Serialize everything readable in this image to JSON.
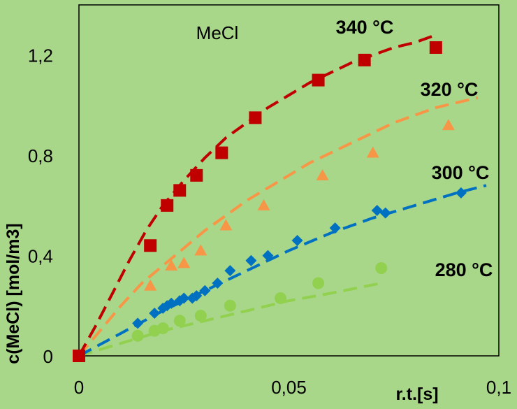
{
  "colors": {
    "background": "#a9d78a",
    "series_340": "#c00000",
    "series_320": "#f79646",
    "series_300": "#0070c0",
    "series_280": "#92d050"
  },
  "chart_data": {
    "type": "scatter",
    "title": "MeCl",
    "xlabel": "r.t.[s]",
    "ylabel": "c(MeCl)  [mol/m3]",
    "xlim": [
      0,
      0.1
    ],
    "ylim": [
      0,
      1.4
    ],
    "x_ticks": [
      "0",
      "0,05",
      "0,1"
    ],
    "x_tick_values": [
      0,
      0.05,
      0.1
    ],
    "y_ticks": [
      "0",
      "0,4",
      "0,8",
      "1,2"
    ],
    "y_tick_values": [
      0,
      0.4,
      0.8,
      1.2
    ],
    "grid": false,
    "legend": "none",
    "series": [
      {
        "name": "340 °C",
        "marker": "square",
        "color": "#c00000",
        "x": [
          0.0,
          0.017,
          0.021,
          0.024,
          0.028,
          0.034,
          0.042,
          0.057,
          0.068,
          0.085
        ],
        "y": [
          0.0,
          0.44,
          0.6,
          0.66,
          0.72,
          0.81,
          0.95,
          1.1,
          1.18,
          1.23
        ],
        "fit_x": [
          0.0,
          0.004,
          0.008,
          0.012,
          0.016,
          0.02,
          0.025,
          0.03,
          0.035,
          0.04,
          0.045,
          0.05,
          0.055,
          0.06,
          0.065,
          0.07,
          0.075,
          0.08,
          0.085
        ],
        "fit_y": [
          0.0,
          0.12,
          0.25,
          0.38,
          0.5,
          0.6,
          0.7,
          0.79,
          0.87,
          0.93,
          0.99,
          1.04,
          1.09,
          1.13,
          1.17,
          1.2,
          1.23,
          1.25,
          1.28
        ]
      },
      {
        "name": "320 °C",
        "marker": "triangle",
        "color": "#f79646",
        "x": [
          0.0,
          0.017,
          0.022,
          0.025,
          0.029,
          0.035,
          0.044,
          0.058,
          0.07,
          0.088
        ],
        "y": [
          0.0,
          0.28,
          0.36,
          0.37,
          0.42,
          0.52,
          0.6,
          0.72,
          0.81,
          0.92
        ],
        "fit_x": [
          0.0,
          0.005,
          0.01,
          0.015,
          0.02,
          0.025,
          0.03,
          0.035,
          0.04,
          0.045,
          0.05,
          0.055,
          0.06,
          0.065,
          0.07,
          0.075,
          0.08,
          0.085,
          0.09,
          0.095
        ],
        "fit_y": [
          0.0,
          0.1,
          0.2,
          0.29,
          0.36,
          0.43,
          0.5,
          0.56,
          0.62,
          0.67,
          0.72,
          0.77,
          0.81,
          0.85,
          0.89,
          0.93,
          0.96,
          0.99,
          1.01,
          1.03
        ]
      },
      {
        "name": "300 °C",
        "marker": "diamond",
        "color": "#0070c0",
        "x": [
          0.0,
          0.014,
          0.018,
          0.02,
          0.021,
          0.022,
          0.024,
          0.025,
          0.027,
          0.028,
          0.03,
          0.033,
          0.036,
          0.041,
          0.045,
          0.052,
          0.061,
          0.071,
          0.073,
          0.091
        ],
        "y": [
          0.0,
          0.13,
          0.17,
          0.19,
          0.2,
          0.21,
          0.22,
          0.23,
          0.23,
          0.24,
          0.26,
          0.29,
          0.34,
          0.38,
          0.4,
          0.46,
          0.51,
          0.58,
          0.57,
          0.65
        ],
        "fit_x": [
          0.0,
          0.01,
          0.02,
          0.03,
          0.04,
          0.05,
          0.06,
          0.07,
          0.08,
          0.09,
          0.097
        ],
        "fit_y": [
          0.0,
          0.09,
          0.18,
          0.26,
          0.34,
          0.42,
          0.49,
          0.55,
          0.6,
          0.65,
          0.68
        ]
      },
      {
        "name": "280 °C",
        "marker": "circle",
        "color": "#92d050",
        "x": [
          0.0,
          0.014,
          0.018,
          0.02,
          0.024,
          0.029,
          0.036,
          0.048,
          0.057,
          0.072
        ],
        "y": [
          0.0,
          0.08,
          0.1,
          0.11,
          0.14,
          0.16,
          0.2,
          0.23,
          0.29,
          0.35
        ],
        "fit_x": [
          0.0,
          0.01,
          0.02,
          0.03,
          0.04,
          0.05,
          0.06,
          0.072
        ],
        "fit_y": [
          0.0,
          0.05,
          0.1,
          0.14,
          0.18,
          0.22,
          0.25,
          0.29
        ]
      }
    ]
  }
}
